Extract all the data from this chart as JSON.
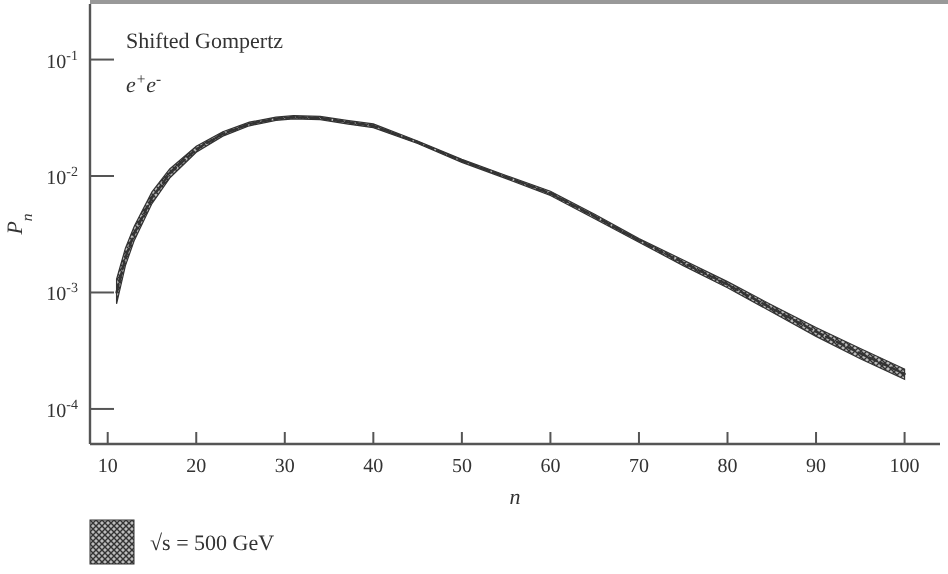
{
  "chart_data": {
    "type": "line",
    "xlabel": "n",
    "ylabel": "P$_{n}$",
    "annotations": [
      "Shifted Gompertz",
      "e$^{+}$e$^{-}$"
    ],
    "log": "y",
    "xlim": [
      8,
      104
    ],
    "xticks": [
      10,
      20,
      30,
      40,
      50,
      60,
      70,
      80,
      90,
      100
    ],
    "ylim": [
      5e-05,
      0.3
    ],
    "yticks": [
      {
        "value": 0.0001,
        "label": "10$^{-4}$"
      },
      {
        "value": 0.001,
        "label": "10$^{-3}$"
      },
      {
        "value": 0.01,
        "label": "10$^{-2}$"
      },
      {
        "value": 0.1,
        "label": "10$^{-1}$"
      }
    ],
    "grid": false,
    "legend": "bottom left",
    "line_style": "dashed",
    "marker": "none",
    "x": [
      11,
      12,
      13,
      15,
      17,
      20,
      23,
      26,
      29,
      31,
      34,
      37,
      40,
      45,
      50,
      55,
      60,
      65,
      70,
      75,
      80,
      85,
      90,
      95,
      100
    ],
    "series": [
      {
        "name": "√s = 500 GeV",
        "color": "#333333",
        "values": [
          0.001,
          0.002,
          0.0032,
          0.0065,
          0.0105,
          0.017,
          0.023,
          0.028,
          0.031,
          0.032,
          0.0315,
          0.029,
          0.027,
          0.0195,
          0.0135,
          0.0098,
          0.0071,
          0.0045,
          0.0028,
          0.0018,
          0.00117,
          0.00073,
          0.00046,
          0.0003,
          0.0002
        ],
        "lower": [
          0.0008,
          0.0017,
          0.0028,
          0.0058,
          0.0096,
          0.016,
          0.022,
          0.027,
          0.03,
          0.031,
          0.0305,
          0.028,
          0.026,
          0.019,
          0.0131,
          0.0095,
          0.0068,
          0.0043,
          0.0027,
          0.0017,
          0.0011,
          0.00068,
          0.00042,
          0.00027,
          0.00018
        ],
        "upper": [
          0.0013,
          0.0024,
          0.0037,
          0.0073,
          0.0115,
          0.018,
          0.024,
          0.029,
          0.032,
          0.033,
          0.0325,
          0.03,
          0.028,
          0.02,
          0.0139,
          0.0101,
          0.0074,
          0.0047,
          0.0029,
          0.0019,
          0.00124,
          0.00078,
          0.0005,
          0.00033,
          0.00022
        ]
      }
    ]
  }
}
